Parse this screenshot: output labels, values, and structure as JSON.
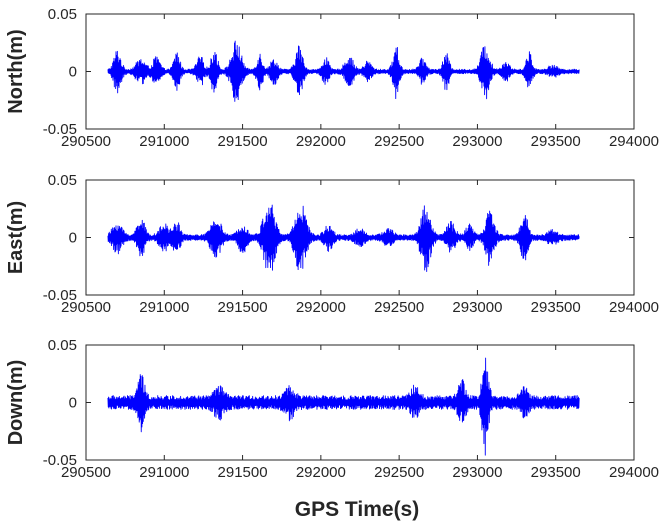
{
  "chart_data": [
    {
      "type": "line",
      "ylabel": "North(m)",
      "xlabel": "",
      "xlim": [
        290500,
        294000
      ],
      "ylim": [
        -0.05,
        0.05
      ],
      "xticks": [
        290500,
        291000,
        291500,
        292000,
        292500,
        293000,
        293500,
        294000
      ],
      "xtick_labels": [
        "290500",
        "291000",
        "291500",
        "292000",
        "292500",
        "293000",
        "293500",
        "294000"
      ],
      "yticks": [
        -0.05,
        0,
        0.05
      ],
      "ytick_labels": [
        "-0.05",
        "0",
        "0.05"
      ],
      "color": "#0000ff",
      "x_range": [
        290640,
        293650
      ],
      "noise_amplitude": 0.002,
      "bursts": [
        {
          "t": 290700,
          "amp": 0.018,
          "width": 30
        },
        {
          "t": 290850,
          "amp": 0.01,
          "width": 40
        },
        {
          "t": 290950,
          "amp": 0.012,
          "width": 30
        },
        {
          "t": 291080,
          "amp": 0.017,
          "width": 25
        },
        {
          "t": 291230,
          "amp": 0.012,
          "width": 30
        },
        {
          "t": 291320,
          "amp": 0.02,
          "width": 25
        },
        {
          "t": 291460,
          "amp": 0.026,
          "width": 40
        },
        {
          "t": 291610,
          "amp": 0.015,
          "width": 25
        },
        {
          "t": 291700,
          "amp": 0.01,
          "width": 30
        },
        {
          "t": 291860,
          "amp": 0.022,
          "width": 30
        },
        {
          "t": 292030,
          "amp": 0.012,
          "width": 25
        },
        {
          "t": 292180,
          "amp": 0.013,
          "width": 35
        },
        {
          "t": 292300,
          "amp": 0.008,
          "width": 30
        },
        {
          "t": 292480,
          "amp": 0.022,
          "width": 25
        },
        {
          "t": 292650,
          "amp": 0.01,
          "width": 30
        },
        {
          "t": 292800,
          "amp": 0.015,
          "width": 25
        },
        {
          "t": 293050,
          "amp": 0.024,
          "width": 35
        },
        {
          "t": 293180,
          "amp": 0.008,
          "width": 30
        },
        {
          "t": 293330,
          "amp": 0.016,
          "width": 25
        },
        {
          "t": 293480,
          "amp": 0.004,
          "width": 40
        }
      ]
    },
    {
      "type": "line",
      "ylabel": "East(m)",
      "xlabel": "",
      "xlim": [
        290500,
        294000
      ],
      "ylim": [
        -0.05,
        0.05
      ],
      "xticks": [
        290500,
        291000,
        291500,
        292000,
        292500,
        293000,
        293500,
        294000
      ],
      "xtick_labels": [
        "290500",
        "291000",
        "291500",
        "292000",
        "292500",
        "293000",
        "293500",
        "294000"
      ],
      "yticks": [
        -0.05,
        0,
        0.05
      ],
      "ytick_labels": [
        "-0.05",
        "0",
        "0.05"
      ],
      "color": "#0000ff",
      "x_range": [
        290640,
        293650
      ],
      "noise_amplitude": 0.0025,
      "bursts": [
        {
          "t": 290700,
          "amp": 0.012,
          "width": 40
        },
        {
          "t": 290850,
          "amp": 0.018,
          "width": 30
        },
        {
          "t": 291000,
          "amp": 0.01,
          "width": 40
        },
        {
          "t": 291080,
          "amp": 0.012,
          "width": 30
        },
        {
          "t": 291330,
          "amp": 0.018,
          "width": 40
        },
        {
          "t": 291500,
          "amp": 0.012,
          "width": 35
        },
        {
          "t": 291670,
          "amp": 0.033,
          "width": 45
        },
        {
          "t": 291870,
          "amp": 0.03,
          "width": 45
        },
        {
          "t": 292050,
          "amp": 0.01,
          "width": 35
        },
        {
          "t": 292250,
          "amp": 0.006,
          "width": 40
        },
        {
          "t": 292430,
          "amp": 0.006,
          "width": 40
        },
        {
          "t": 292670,
          "amp": 0.028,
          "width": 40
        },
        {
          "t": 292830,
          "amp": 0.012,
          "width": 35
        },
        {
          "t": 292950,
          "amp": 0.01,
          "width": 30
        },
        {
          "t": 293080,
          "amp": 0.024,
          "width": 35
        },
        {
          "t": 293300,
          "amp": 0.02,
          "width": 30
        },
        {
          "t": 293480,
          "amp": 0.005,
          "width": 40
        }
      ]
    },
    {
      "type": "line",
      "ylabel": "Down(m)",
      "xlabel": "GPS Time(s)",
      "xlim": [
        290500,
        294000
      ],
      "ylim": [
        -0.05,
        0.05
      ],
      "xticks": [
        290500,
        291000,
        291500,
        292000,
        292500,
        293000,
        293500,
        294000
      ],
      "xtick_labels": [
        "290500",
        "291000",
        "291500",
        "292000",
        "292500",
        "293000",
        "293500",
        "294000"
      ],
      "yticks": [
        -0.05,
        0,
        0.05
      ],
      "ytick_labels": [
        "-0.05",
        "0",
        "0.05"
      ],
      "color": "#0000ff",
      "x_range": [
        290640,
        293650
      ],
      "noise_amplitude": 0.006,
      "bursts": [
        {
          "t": 290850,
          "amp": 0.02,
          "width": 30
        },
        {
          "t": 291350,
          "amp": 0.01,
          "width": 40
        },
        {
          "t": 291800,
          "amp": 0.01,
          "width": 40
        },
        {
          "t": 292600,
          "amp": 0.01,
          "width": 35
        },
        {
          "t": 292900,
          "amp": 0.015,
          "width": 30
        },
        {
          "t": 293050,
          "amp": 0.04,
          "width": 25
        },
        {
          "t": 293300,
          "amp": 0.01,
          "width": 30
        }
      ]
    }
  ]
}
